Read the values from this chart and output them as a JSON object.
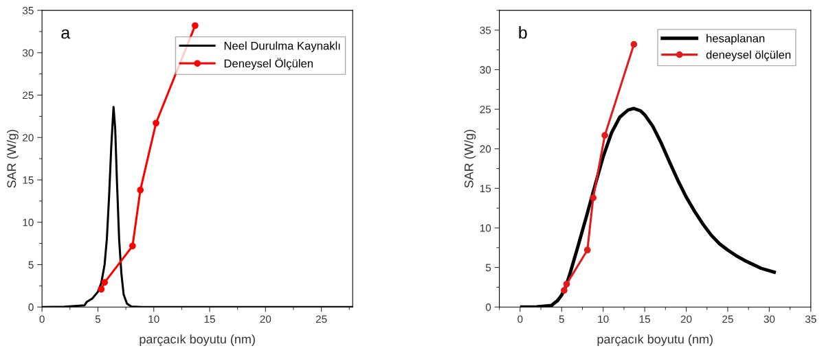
{
  "chart_data": [
    {
      "type": "line",
      "xlabel": "parçacık boyutu (nm)",
      "ylabel": "SAR (W/g)",
      "annotations": [
        "a"
      ],
      "xlim": [
        0,
        27.8
      ],
      "ylim": [
        0,
        35
      ],
      "xticks": [
        0,
        5,
        10,
        15,
        20,
        25
      ],
      "yticks": [
        0,
        5,
        10,
        15,
        20,
        25,
        30,
        35
      ],
      "legend": "top right",
      "grid": false,
      "series": [
        {
          "name": "Neel Durulma Kaynaklı",
          "color": "#000000",
          "marker": "none",
          "x": [
            0,
            2,
            3.8,
            4,
            4.5,
            5,
            5.3,
            5.6,
            5.8,
            6.0,
            6.2,
            6.4,
            6.55,
            6.7,
            6.9,
            7.1,
            7.3,
            7.6,
            8,
            9,
            27.8
          ],
          "values": [
            0,
            0.03,
            0.2,
            0.6,
            1.0,
            1.8,
            2.8,
            5,
            8,
            13,
            19,
            23.6,
            21,
            15,
            8,
            4,
            1.5,
            0.4,
            0.05,
            0,
            0
          ]
        },
        {
          "name": "Deneysel Ölçülen",
          "color": "#ff0000",
          "marker": "circle",
          "x": [
            5.3,
            5.6,
            8.1,
            8.8,
            10.2,
            13.7
          ],
          "values": [
            2.1,
            2.9,
            7.2,
            13.8,
            21.7,
            33.2
          ]
        }
      ]
    },
    {
      "type": "line",
      "xlabel": "parçacık boyutu (nm)",
      "ylabel": "SAR (W/g)",
      "annotations": [
        "b"
      ],
      "xlim": [
        -2.5,
        35
      ],
      "ylim": [
        0,
        37.5
      ],
      "xticks": [
        0,
        5,
        10,
        15,
        20,
        25,
        30,
        35
      ],
      "yticks": [
        0,
        5,
        10,
        15,
        20,
        25,
        30,
        35
      ],
      "legend": "top right",
      "grid": false,
      "series": [
        {
          "name": "hesaplanan",
          "color": "#000000",
          "marker": "none",
          "x": [
            0.2,
            2,
            3.8,
            4,
            4.5,
            5,
            5.5,
            6,
            7,
            8,
            9,
            10,
            11,
            12,
            13,
            13.7,
            14.5,
            15,
            16,
            17,
            18,
            19,
            20,
            21,
            22,
            23,
            24,
            25,
            26,
            27,
            28,
            29,
            30.6
          ],
          "values": [
            0,
            0.03,
            0.2,
            0.4,
            0.8,
            1.5,
            2.6,
            4.2,
            7.8,
            11.5,
            15.3,
            19,
            22,
            24,
            24.9,
            25.1,
            24.8,
            24.3,
            22.8,
            20.7,
            18.3,
            16,
            13.9,
            12.1,
            10.5,
            9.1,
            8.0,
            7.2,
            6.5,
            5.9,
            5.4,
            4.9,
            4.4
          ]
        },
        {
          "name": "deneysel ölçülen",
          "color": "#e31a1c",
          "marker": "circle",
          "x": [
            5.3,
            5.6,
            8.1,
            8.8,
            10.2,
            13.7
          ],
          "values": [
            2.1,
            2.9,
            7.2,
            13.8,
            21.7,
            33.2
          ]
        }
      ]
    }
  ]
}
